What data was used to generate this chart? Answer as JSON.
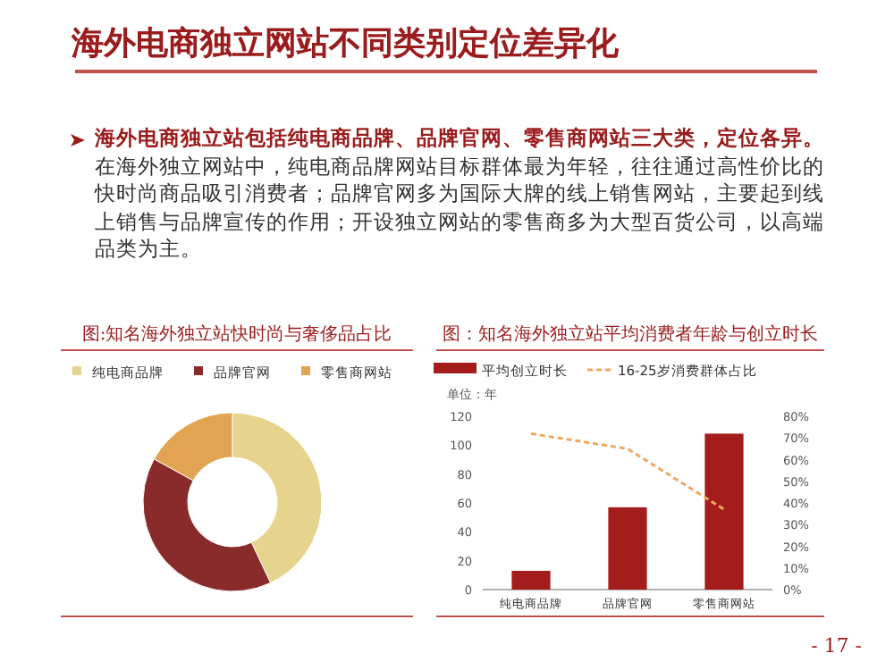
{
  "chart_data": [
    {
      "type": "other",
      "title": "海外电商独立网站不同类别定位差异化",
      "annotations": [
        "海外电商独立站包括纯电商品牌、品牌官网、零售商网站三大类，定位各异。",
        "在海外独立网站中，纯电商品牌网站目标群体最为年轻，往往通过高性价比的快时尚商品吸引消费者；品牌官网多为国际大牌的线上销售网站，主要起到线上销售与品牌宣传的作用；开设独立网站的零售商多为大型百货公司，以高端品类为主。",
        "- 17 -"
      ]
    },
    {
      "type": "donut",
      "title": "图:知名海外独立站快时尚与奢侈品占比",
      "legend": "top",
      "categories": [
        "纯电商品牌",
        "品牌官网",
        "零售商网站"
      ],
      "values": [
        43,
        40,
        17
      ],
      "colors": [
        "#e6d38e",
        "#8a2b2b",
        "#e2a352"
      ]
    },
    {
      "type": "bar",
      "title": "图：知名海外独立站平均消费者年龄与创立时长",
      "ylabel": "单位：年",
      "legend": "top",
      "categories": [
        "纯电商品牌",
        "品牌官网",
        "零售商网站"
      ],
      "ylim": [
        0,
        120
      ],
      "yticks": [
        0,
        20,
        40,
        60,
        80,
        100,
        120
      ],
      "y2lim": [
        0,
        80
      ],
      "y2ticks": [
        {
          "value": 0,
          "label": "0%"
        },
        {
          "value": 10,
          "label": "10%"
        },
        {
          "value": 20,
          "label": "20%"
        },
        {
          "value": 30,
          "label": "30%"
        },
        {
          "value": 40,
          "label": "40%"
        },
        {
          "value": 50,
          "label": "50%"
        },
        {
          "value": 60,
          "label": "60%"
        },
        {
          "value": 70,
          "label": "70%"
        },
        {
          "value": 80,
          "label": "80%"
        }
      ],
      "series": [
        {
          "name": "平均创立时长",
          "type": "bar",
          "color": "#a51c1c",
          "values": [
            13,
            57,
            108
          ]
        },
        {
          "name": "16-25岁消费群体占比",
          "type": "line",
          "axis": "y2",
          "line_style": "dashed",
          "color": "#f0a860",
          "values": [
            72,
            65,
            37
          ]
        }
      ]
    }
  ]
}
